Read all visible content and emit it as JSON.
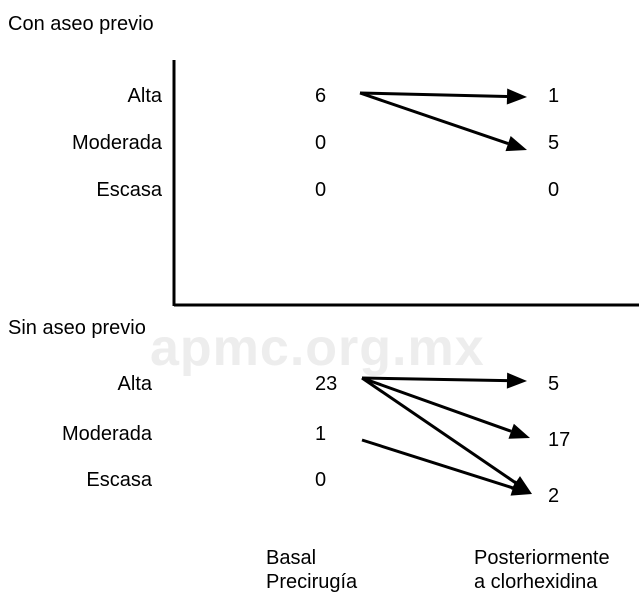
{
  "watermark": "apmc.org.mx",
  "sections": [
    {
      "title": "Con aseo previo",
      "rows": [
        {
          "label": "Alta",
          "basal": "6",
          "post": "1"
        },
        {
          "label": "Moderada",
          "basal": "0",
          "post": "5"
        },
        {
          "label": "Escasa",
          "basal": "0",
          "post": "0"
        }
      ],
      "transitions": [
        {
          "from": "Alta",
          "to": "Alta"
        },
        {
          "from": "Alta",
          "to": "Moderada"
        }
      ]
    },
    {
      "title": "Sin aseo previo",
      "rows": [
        {
          "label": "Alta",
          "basal": "23",
          "post": "5"
        },
        {
          "label": "Moderada",
          "basal": "1",
          "post": "17"
        },
        {
          "label": "Escasa",
          "basal": "0",
          "post": "2"
        }
      ],
      "transitions": [
        {
          "from": "Alta",
          "to": "Alta"
        },
        {
          "from": "Alta",
          "to": "Moderada"
        },
        {
          "from": "Alta",
          "to": "Escasa"
        },
        {
          "from": "Moderada",
          "to": "Escasa"
        }
      ]
    }
  ],
  "columns": {
    "basal": [
      "Basal",
      "Precirugía"
    ],
    "post": [
      "Posteriormente",
      "a clorhexidina"
    ]
  },
  "colors": {
    "ink": "#000000",
    "watermark": "#ededed"
  }
}
